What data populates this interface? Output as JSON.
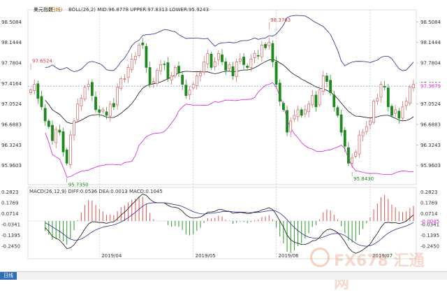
{
  "chart_data": [
    {
      "type": "line",
      "name": "美元指数",
      "period_label": "日线",
      "indicator_text": "BOLL(26,2) MID:96.8778 UPPER:97.8313 LOWER:95.9243",
      "ylim": [
        95.62,
        98.6
      ],
      "yticks": [
        98.5084,
        98.1444,
        97.7804,
        97.4164,
        97.0524,
        96.6883,
        96.3243,
        95.9603
      ],
      "current_price": 97.3679,
      "annotations": [
        {
          "label": "97.6524",
          "index": 0,
          "value": 97.6524
        },
        {
          "label": "98.3763",
          "index": 66,
          "value": 98.3763
        },
        {
          "label": "95.7350",
          "index": 10,
          "value": 95.735
        },
        {
          "label": "95.8430",
          "index": 89,
          "value": 95.843
        }
      ],
      "x_date_labels": [
        {
          "label": "2019/04",
          "index": 19
        },
        {
          "label": "2019/05",
          "index": 45
        },
        {
          "label": "2019/06",
          "index": 68
        },
        {
          "label": "2019/07",
          "index": 94
        }
      ],
      "closes": [
        97.3,
        97.4,
        97.15,
        97.0,
        96.75,
        96.65,
        96.4,
        96.6,
        96.55,
        96.2,
        96.0,
        96.5,
        96.75,
        97.05,
        97.15,
        97.35,
        97.4,
        97.2,
        96.95,
        96.9,
        96.95,
        96.85,
        97.05,
        97.0,
        97.35,
        97.5,
        97.5,
        97.7,
        97.85,
        97.9,
        98.1,
        98.1,
        97.7,
        97.4,
        97.45,
        97.65,
        97.75,
        97.75,
        97.5,
        97.55,
        97.7,
        97.6,
        97.4,
        97.2,
        97.3,
        97.4,
        97.55,
        97.6,
        97.8,
        97.95,
        97.7,
        97.8,
        97.95,
        97.8,
        97.65,
        97.75,
        97.55,
        97.8,
        97.85,
        97.75,
        97.7,
        97.85,
        97.95,
        97.9,
        98.1,
        98.05,
        98.15,
        97.8,
        97.4,
        97.1,
        96.95,
        96.55,
        96.75,
        96.85,
        96.95,
        96.85,
        96.95,
        97.05,
        97.2,
        97.0,
        97.3,
        97.55,
        97.45,
        97.25,
        97.0,
        96.85,
        96.55,
        96.3,
        96.0,
        96.1,
        96.2,
        96.5,
        96.55,
        96.65,
        96.75,
        97.1,
        97.15,
        97.4,
        97.35,
        97.0,
        96.85,
        96.95,
        96.8,
        97.0,
        97.1,
        97.35,
        97.4
      ],
      "ohlc_window": {
        "first_index": 0,
        "last_index": 106,
        "up_color": "#d06060",
        "down_color": "#1e8a1e"
      },
      "series": [
        {
          "name": "MID",
          "color": "#111111",
          "value": 96.8778
        },
        {
          "name": "UPPER",
          "color": "#2b2b8e",
          "value": 97.8313
        },
        {
          "name": "LOWER",
          "color": "#d81ed8",
          "value": 95.9243
        }
      ]
    },
    {
      "type": "bar",
      "indicator_text": "MACD(26,12,9) DIFF:0.0536 DEA:0.0013 MACD:0.1045",
      "ylim": [
        -0.3,
        0.3
      ],
      "yticks": [
        0.2823,
        0.1769,
        0.0714,
        -0.0341,
        -0.1395,
        -0.245
      ],
      "current_value": -0.0045,
      "series": [
        {
          "name": "DIFF",
          "color": "#111111",
          "value": 0.0536
        },
        {
          "name": "DEA",
          "color": "#2b2b8e",
          "value": 0.0013
        },
        {
          "name": "MACD",
          "color": "#d81ed8",
          "value": 0.1045
        }
      ],
      "bar_colors": {
        "positive": "#e05050",
        "negative": "#2a9a2a"
      }
    }
  ],
  "toolbar": {
    "period": "日线"
  },
  "watermark": {
    "brand": "FX678",
    "cn": "汇通网"
  }
}
